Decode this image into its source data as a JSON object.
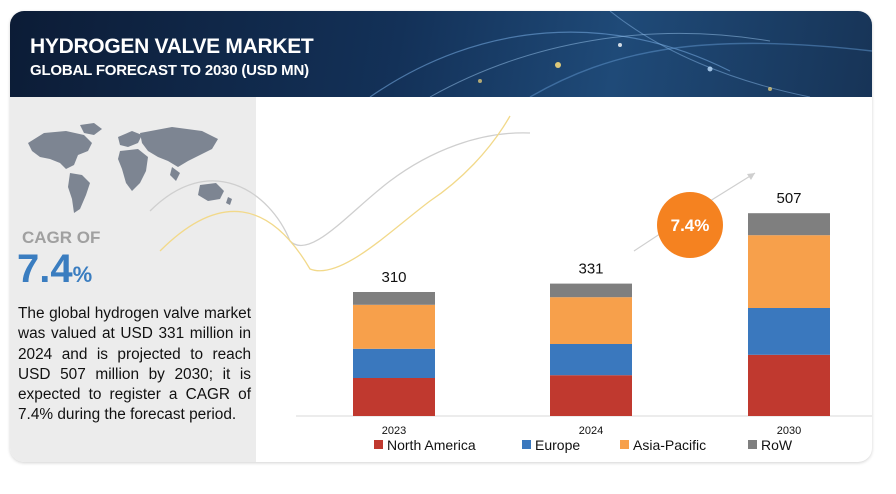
{
  "header": {
    "title": "HYDROGEN VALVE MARKET",
    "subtitle": "GLOBAL FORECAST TO 2030 (USD MN)"
  },
  "map_icon": "world-map-icon",
  "cagr": {
    "label": "CAGR OF",
    "value": "7.4",
    "unit": "%"
  },
  "description": "The global hydrogen valve market was valued at USD 331 million in 2024 and is projected to reach USD 507 million by 2030; it is expected to register a CAGR of 7.4% during the forecast period.",
  "chart_data": {
    "type": "bar",
    "stacked": true,
    "categories": [
      "2023",
      "2024",
      "2030"
    ],
    "totals": [
      "310",
      "331",
      "507"
    ],
    "series": [
      {
        "name": "North America",
        "color": "#c0392f",
        "values": [
          95,
          102,
          153
        ]
      },
      {
        "name": "Europe",
        "color": "#3a78be",
        "values": [
          73,
          78,
          117
        ]
      },
      {
        "name": "Asia-Pacific",
        "color": "#f7a04b",
        "values": [
          110,
          117,
          182
        ]
      },
      {
        "name": "RoW",
        "color": "#7f7f7f",
        "values": [
          32,
          34,
          55
        ]
      }
    ],
    "ylim": [
      0,
      560
    ],
    "callout": "7.4%",
    "callout_color": "#f58220",
    "legend_position": "bottom",
    "grid": false
  }
}
